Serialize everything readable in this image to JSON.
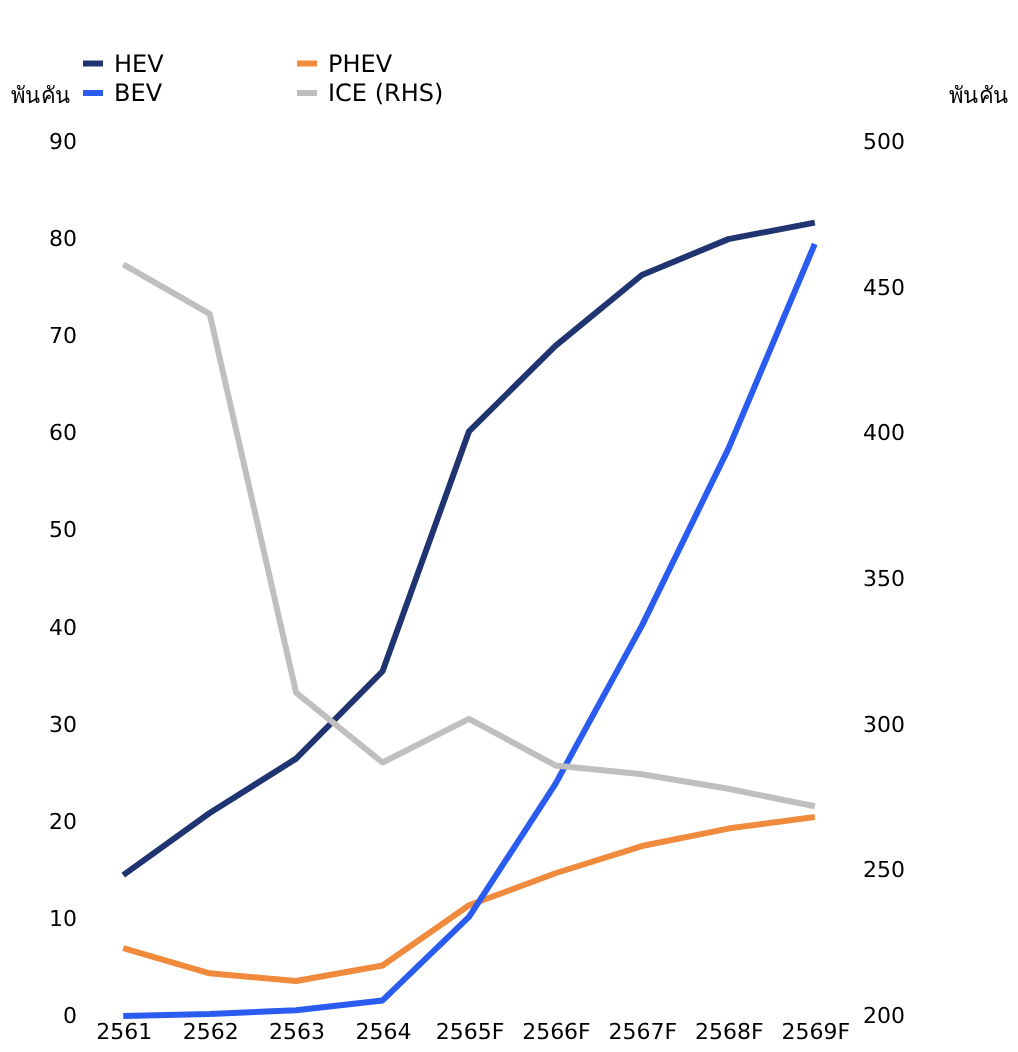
{
  "chart_data": {
    "type": "line",
    "ylabel": "พันคัน",
    "y2label": "พันคัน",
    "categories": [
      "2561",
      "2562",
      "2563",
      "2564",
      "2565F",
      "2566F",
      "2567F",
      "2568F",
      "2569F"
    ],
    "series": [
      {
        "name": "HEV",
        "color": "#1f3470",
        "values": [
          14.5,
          20.9,
          26.5,
          35.5,
          60.2,
          69,
          76.3,
          80,
          81.7
        ]
      },
      {
        "name": "PHEV",
        "color": "#f08a3c",
        "values": [
          7,
          4.4,
          3.6,
          5.2,
          11.4,
          14.7,
          17.5,
          19.3,
          20.5
        ]
      },
      {
        "name": "BEV",
        "color": "#2b5cf0",
        "values": [
          0,
          0.2,
          0.6,
          1.6,
          10.2,
          23.9,
          40.2,
          58.4,
          79.5
        ]
      },
      {
        "name": "ICE (RHS)",
        "color": "#bfbfbf",
        "axis": "y2",
        "values": [
          458,
          441,
          311,
          287,
          302,
          286,
          283,
          278,
          272
        ]
      }
    ],
    "ylim": [
      0,
      90
    ],
    "yticks": [
      0,
      10,
      20,
      30,
      40,
      50,
      60,
      70,
      80,
      90
    ],
    "y2lim": [
      200,
      500
    ],
    "y2ticks": [
      200,
      250,
      300,
      350,
      400,
      450,
      500
    ],
    "grid": false,
    "legend": "top",
    "marker": "none",
    "line_style": "solid"
  }
}
